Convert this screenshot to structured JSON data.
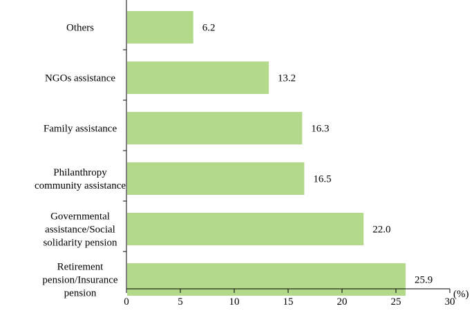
{
  "chart_data": {
    "type": "bar",
    "orientation": "horizontal",
    "categories": [
      [
        "Others"
      ],
      [
        "NGOs assistance"
      ],
      [
        "Family assistance"
      ],
      [
        "Philanthropy",
        "community assistance"
      ],
      [
        "Governmental",
        "assistance/Social",
        "solidarity pension"
      ],
      [
        "Retirement",
        "pension/Insurance",
        "pension"
      ]
    ],
    "values": [
      6.2,
      13.2,
      16.3,
      16.5,
      22.0,
      25.9
    ],
    "value_labels": [
      "6.2",
      "13.2",
      "16.3",
      "16.5",
      "22.0",
      "25.9"
    ],
    "xlim": [
      0,
      30
    ],
    "xticks": [
      0,
      5,
      10,
      15,
      20,
      25,
      30
    ],
    "unit_label": "(%)",
    "bar_color": "#b3d98a",
    "grid": false,
    "legend": "none"
  }
}
